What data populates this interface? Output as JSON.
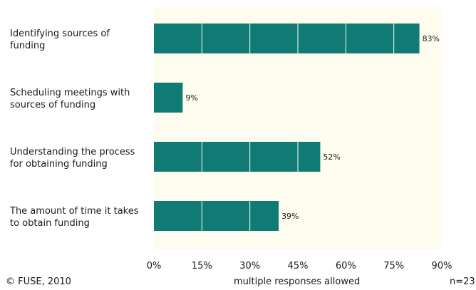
{
  "colors": {
    "plot_background": "#fdfcee",
    "bar": "#0f7b74",
    "bar_segment_line": "#ffffff"
  },
  "chart_data": {
    "type": "bar",
    "orientation": "horizontal",
    "categories": [
      [
        "Identifying sources of",
        "funding"
      ],
      [
        "Scheduling meetings with",
        "sources of funding"
      ],
      [
        "Understanding the process",
        "for obtaining funding"
      ],
      [
        "The amount of time it takes",
        "to obtain funding"
      ]
    ],
    "values": [
      83,
      9,
      52,
      39
    ],
    "value_labels": [
      "83%",
      "9%",
      "52%",
      "39%"
    ],
    "xlim": [
      0,
      90
    ],
    "x_ticks": [
      0,
      15,
      30,
      45,
      60,
      75,
      90
    ],
    "x_tick_labels": [
      "0%",
      "15%",
      "30%",
      "45%",
      "60%",
      "75%",
      "90%"
    ],
    "grid": false
  },
  "footer": {
    "copyright": "© FUSE, 2010",
    "note": "multiple responses allowed",
    "sample_size": "n=23"
  }
}
